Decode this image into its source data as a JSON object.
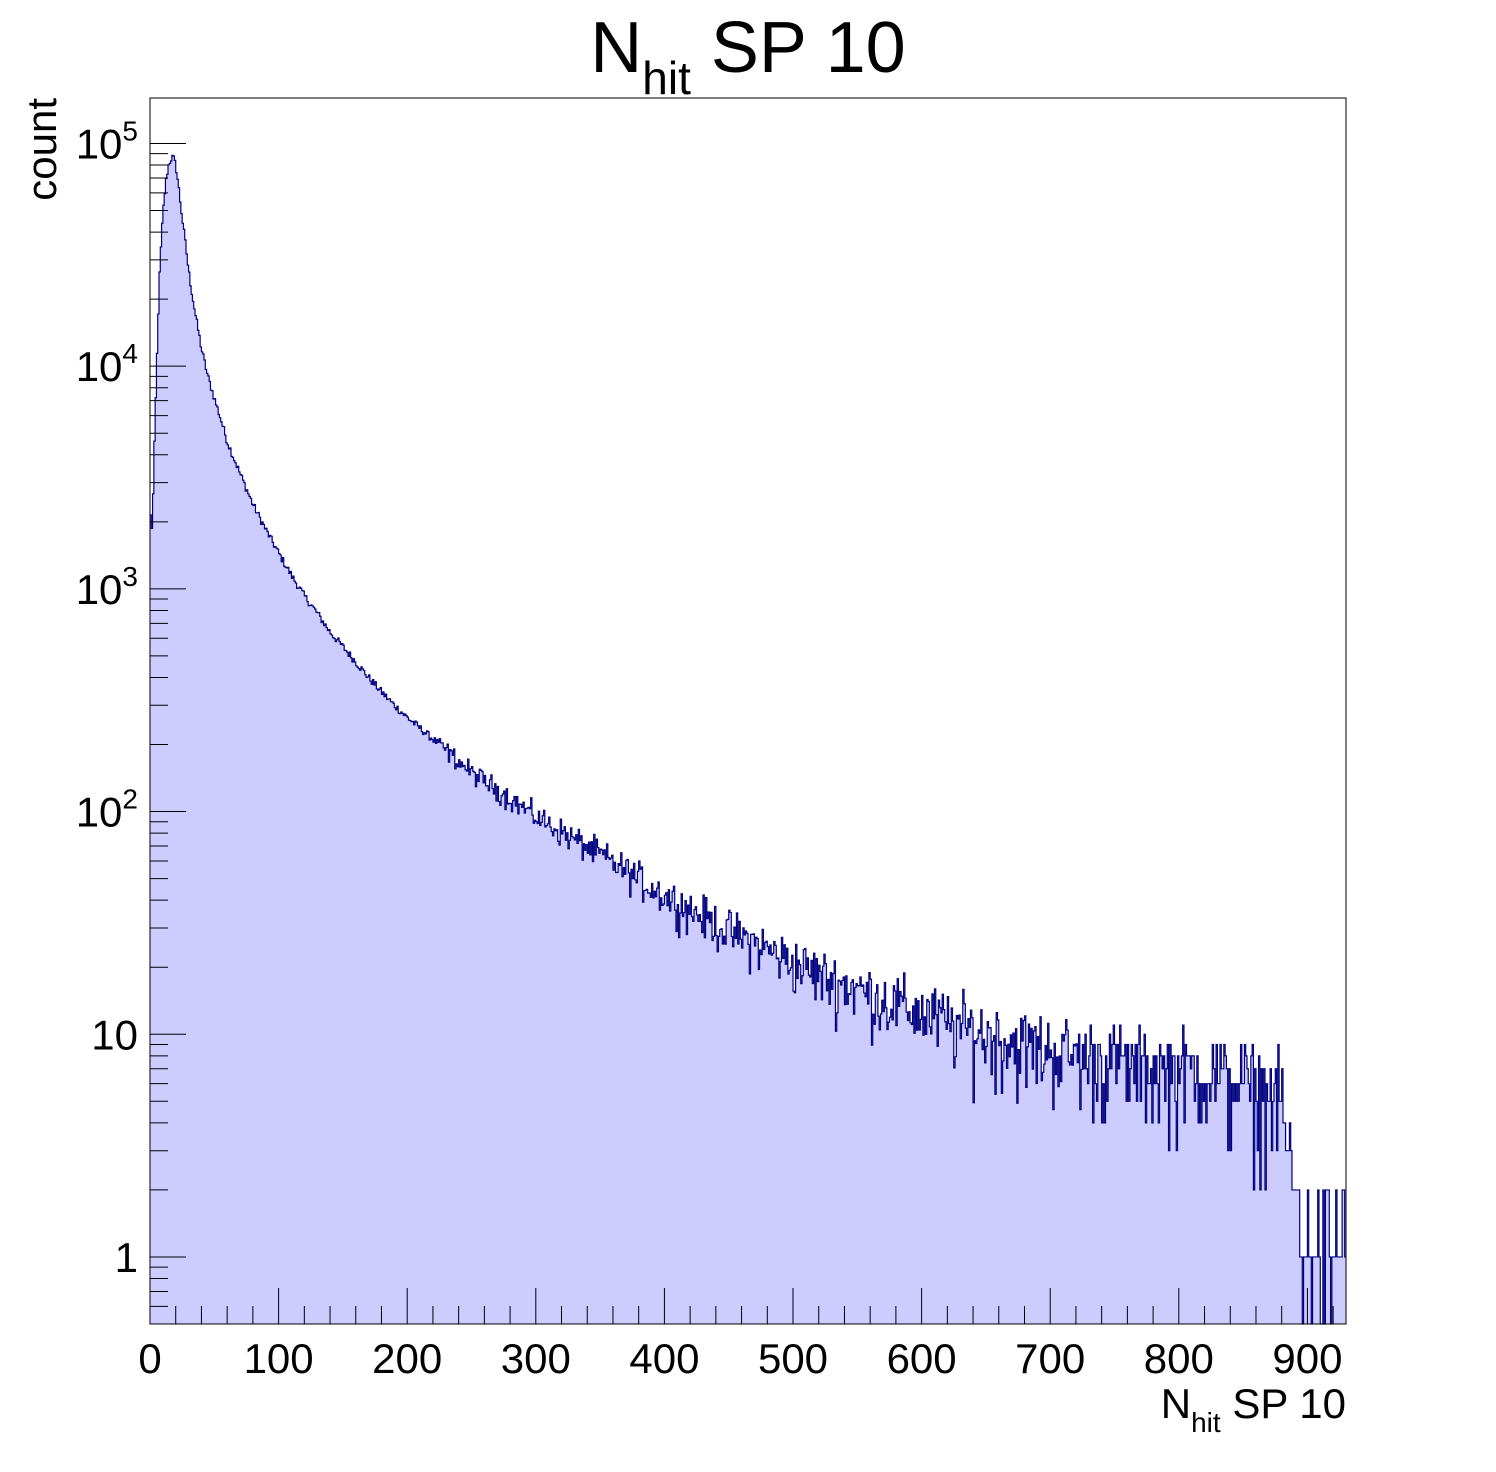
{
  "chart_data": {
    "type": "histogram",
    "title": {
      "main": "N",
      "sub": "hit",
      "rest": " SP 10"
    },
    "xlabel": {
      "main": "N",
      "sub": "hit",
      "rest": " SP 10"
    },
    "ylabel": "count",
    "xlim": [
      0,
      930
    ],
    "ylim": [
      0.5,
      160000
    ],
    "log_y": true,
    "bin_width": 1,
    "x_ticks": [
      "0",
      "100",
      "200",
      "300",
      "400",
      "500",
      "600",
      "700",
      "800",
      "900"
    ],
    "x_tick_values": [
      0,
      100,
      200,
      300,
      400,
      500,
      600,
      700,
      800,
      900
    ],
    "y_ticks": [
      {
        "value": 1,
        "base": "1",
        "exp": ""
      },
      {
        "value": 10,
        "base": "10",
        "exp": ""
      },
      {
        "value": 100,
        "base": "10",
        "exp": "2"
      },
      {
        "value": 1000,
        "base": "10",
        "exp": "3"
      },
      {
        "value": 10000,
        "base": "10",
        "exp": "4"
      },
      {
        "value": 100000,
        "base": "10",
        "exp": "5"
      }
    ],
    "series": [
      {
        "x": [
          0,
          1,
          2,
          3,
          5,
          7,
          8,
          10,
          12,
          14,
          16,
          18,
          20,
          22,
          24,
          26,
          28,
          30,
          32,
          35,
          38,
          40,
          45,
          50,
          55,
          60,
          70,
          80,
          90,
          100,
          110,
          120,
          130,
          140,
          150,
          160,
          170,
          180,
          190,
          200,
          225,
          250,
          275,
          300,
          325,
          350,
          375,
          400,
          425,
          450,
          475,
          500,
          525,
          550,
          575,
          600,
          625,
          650,
          675,
          700,
          725,
          750,
          775,
          800,
          825,
          850,
          870,
          880,
          885,
          890,
          895,
          900,
          910,
          920,
          930
        ],
        "values": [
          2500,
          1800,
          2000,
          3500,
          9000,
          22000,
          30000,
          48000,
          65000,
          78000,
          85000,
          87000,
          80000,
          66000,
          52000,
          42000,
          34000,
          27000,
          22500,
          17500,
          14000,
          12000,
          9000,
          7200,
          5800,
          4600,
          3300,
          2400,
          1850,
          1450,
          1150,
          930,
          780,
          640,
          550,
          470,
          400,
          345,
          300,
          265,
          200,
          150,
          120,
          95,
          78,
          64,
          52,
          42,
          35,
          29,
          25,
          21,
          18,
          16,
          14,
          12.5,
          11,
          10,
          9,
          8.5,
          8,
          7.5,
          7,
          7,
          6.5,
          6,
          5.5,
          5,
          3,
          2,
          1.5,
          1,
          1,
          1,
          1
        ],
        "color": "#000080",
        "fill": "#ccccff"
      }
    ]
  }
}
